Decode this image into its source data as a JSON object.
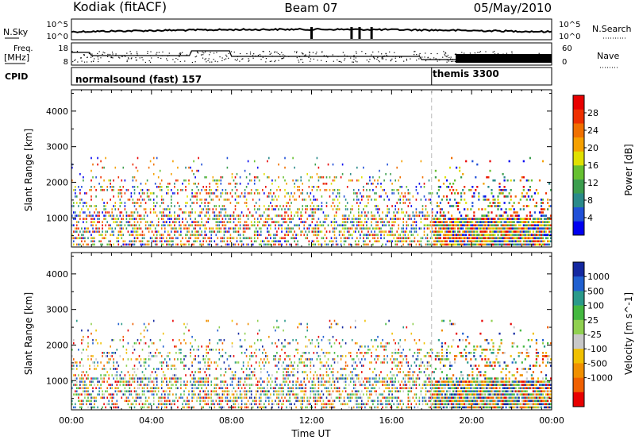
{
  "header": {
    "station": "Kodiak (fitACF)",
    "beam": "Beam 07",
    "date": "05/May/2010"
  },
  "top_panels": {
    "nsky_label": "N.Sky",
    "nsky_ticks": [
      "10^5",
      "10^0"
    ],
    "nsearch_label": "N.Search",
    "nsearch_ticks": [
      "10^5",
      "10^0"
    ],
    "freq_label": "Freq.",
    "freq_unit": "[MHz]",
    "freq_ticks": [
      "18",
      "8"
    ],
    "nave_label": "Nave",
    "nave_ticks": [
      "60",
      "0"
    ],
    "cpid_label": "CPID",
    "modes": [
      {
        "name": "normalsound (fast) 157",
        "start_hour": 0
      },
      {
        "name": "themis 3300",
        "start_hour": 18
      }
    ]
  },
  "chart_data": [
    {
      "type": "heatmap",
      "quantity": "power",
      "ylabel": "Slant Range [km]",
      "xlabel": "Time UT",
      "ylim": [
        180,
        4600
      ],
      "yticks": [
        1000,
        2000,
        3000,
        4000
      ],
      "x_ticks": [
        "00:00",
        "04:00",
        "08:00",
        "12:00",
        "16:00",
        "20:00",
        "00:00"
      ],
      "x_hours": [
        0,
        4,
        8,
        12,
        16,
        20,
        24
      ],
      "mode_change_hour": 18,
      "colorbar": {
        "label": "Power [dB]",
        "ticks": [
          "4",
          "8",
          "12",
          "16",
          "20",
          "24",
          "28"
        ],
        "tick_values": [
          4,
          8,
          12,
          16,
          20,
          24,
          28
        ],
        "range": [
          0,
          32
        ],
        "colors": [
          "#0000f0",
          "#2050d8",
          "#2a8a8a",
          "#3c9e4e",
          "#66c030",
          "#e0e000",
          "#f5a000",
          "#f07000",
          "#ee3000",
          "#e80000"
        ]
      }
    },
    {
      "type": "heatmap",
      "quantity": "velocity",
      "ylabel": "Slant Range [km]",
      "xlabel": "Time UT",
      "ylim": [
        180,
        4600
      ],
      "yticks": [
        1000,
        2000,
        3000,
        4000
      ],
      "x_ticks": [
        "00:00",
        "04:00",
        "08:00",
        "12:00",
        "16:00",
        "20:00",
        "00:00"
      ],
      "x_hours": [
        0,
        4,
        8,
        12,
        16,
        20,
        24
      ],
      "mode_change_hour": 18,
      "colorbar": {
        "label": "Velocity [m s^-1]",
        "ticks": [
          "1000",
          "500",
          "100",
          "25",
          "-25",
          "-100",
          "-500",
          "-1000"
        ],
        "tick_values": [
          1000,
          500,
          100,
          25,
          -25,
          -100,
          -500,
          -1000
        ],
        "colors": [
          "#1428a0",
          "#2060d0",
          "#2a9a8a",
          "#44b840",
          "#90d050",
          "#c8c8c8",
          "#f0c000",
          "#f09000",
          "#f06000",
          "#e80000"
        ]
      }
    }
  ]
}
